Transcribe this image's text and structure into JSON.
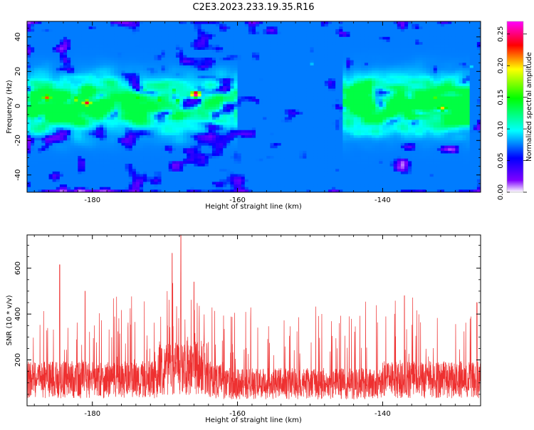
{
  "title": "C2E3.2023.233.19.35.R16",
  "chart_data": [
    {
      "type": "heatmap",
      "xlabel": "Height of straight line (km)",
      "ylabel": "Frequency (Hz)",
      "xlim": [
        -189,
        -126.5
      ],
      "ylim": [
        -50,
        49
      ],
      "x_ticks": [
        -180,
        -160,
        -140
      ],
      "y_ticks": [
        40,
        20,
        0,
        -20,
        -40
      ],
      "colorbar": {
        "label": "Normalized spectral amplitude",
        "range": [
          0,
          0.27
        ],
        "ticks": [
          "0.00",
          "0.05",
          "0.10",
          "0.15",
          "0.20",
          "0.25"
        ],
        "colors": [
          "#ffffff",
          "#7f00ff",
          "#0000ff",
          "#00ffff",
          "#00ff00",
          "#ffff00",
          "#ff0000",
          "#ff00ff"
        ]
      },
      "hotspots": [
        {
          "x": -186.5,
          "y": 4,
          "value": 0.22
        },
        {
          "x": -182.5,
          "y": 3,
          "value": 0.18
        },
        {
          "x": -181,
          "y": 1,
          "value": 0.24
        },
        {
          "x": -177,
          "y": 6,
          "value": 0.14
        },
        {
          "x": -174,
          "y": 4,
          "value": 0.15
        },
        {
          "x": -171,
          "y": 3,
          "value": 0.16
        },
        {
          "x": -169,
          "y": 8,
          "value": 0.14
        },
        {
          "x": -166,
          "y": 6,
          "value": 0.27
        },
        {
          "x": -168.5,
          "y": 2,
          "value": 0.15
        },
        {
          "x": -164.5,
          "y": -2,
          "value": 0.13
        },
        {
          "x": -173,
          "y": 9,
          "value": 0.12
        },
        {
          "x": -150,
          "y": 24,
          "value": 0.09
        },
        {
          "x": -145,
          "y": 10,
          "value": 0.1
        },
        {
          "x": -140,
          "y": 2,
          "value": 0.12
        },
        {
          "x": -136.5,
          "y": 0,
          "value": 0.14
        },
        {
          "x": -133,
          "y": 4,
          "value": 0.16
        },
        {
          "x": -132,
          "y": -2,
          "value": 0.2
        },
        {
          "x": -128,
          "y": 22,
          "value": 0.09
        }
      ]
    },
    {
      "type": "line",
      "xlabel": "Height of straight line (km)",
      "ylabel": "SNR (10 * v/v)",
      "xlim": [
        -189,
        -126.5
      ],
      "ylim": [
        0,
        745
      ],
      "x_ticks": [
        -180,
        -160,
        -140
      ],
      "y_ticks": [
        200,
        400,
        600
      ],
      "color": "#ee3030",
      "peaks": [
        {
          "x": -184.5,
          "y": 615
        },
        {
          "x": -181,
          "y": 500
        },
        {
          "x": -169,
          "y": 665
        },
        {
          "x": -167.8,
          "y": 745
        },
        {
          "x": -166,
          "y": 540
        },
        {
          "x": -137,
          "y": 480
        },
        {
          "x": -127,
          "y": 450
        }
      ]
    }
  ]
}
